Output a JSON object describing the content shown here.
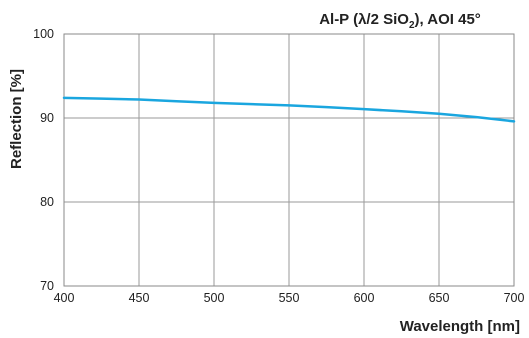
{
  "chart_data": {
    "type": "line",
    "title": {
      "main": "Al-P (λ/2 SiO",
      "sub": "2",
      "tail": "), AOI 45°"
    },
    "xlabel": "Wavelength [nm]",
    "ylabel": "Reflection [%]",
    "xlim": [
      400,
      700
    ],
    "ylim": [
      70,
      100
    ],
    "xticks": [
      400,
      450,
      500,
      550,
      600,
      650,
      700
    ],
    "yticks": [
      70,
      80,
      90,
      100
    ],
    "xtick_labels": [
      "400",
      "450",
      "500",
      "550",
      "600",
      "650",
      "700"
    ],
    "ytick_labels": [
      "70",
      "80",
      "90",
      "100"
    ],
    "grid": true,
    "series": [
      {
        "color": "#1aa6df",
        "x": [
          400,
          425,
          450,
          475,
          500,
          525,
          550,
          575,
          600,
          625,
          650,
          675,
          700
        ],
        "y": [
          92.4,
          92.3,
          92.2,
          92.0,
          91.8,
          91.65,
          91.5,
          91.3,
          91.05,
          90.8,
          90.5,
          90.1,
          89.6
        ]
      }
    ]
  }
}
